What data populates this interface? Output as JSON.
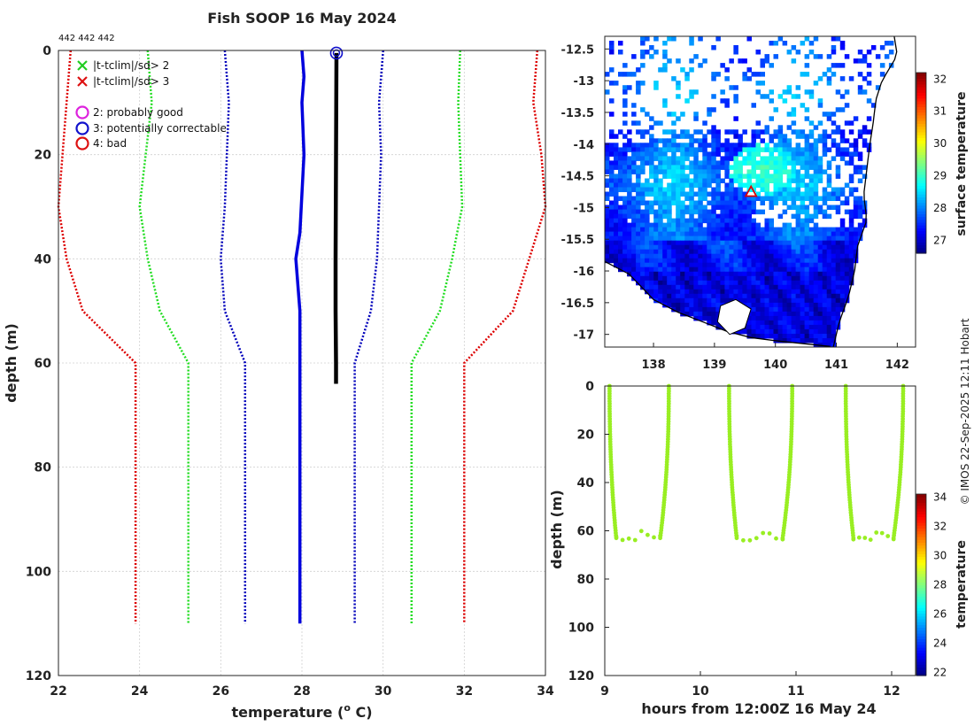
{
  "chart_data": [
    {
      "type": "line",
      "title": "Fish SOOP 16 May 2024",
      "id_label": "442 442 442",
      "xlabel": "temperature (o C)",
      "xlabel_parts": [
        "temperature (",
        "o",
        " C)"
      ],
      "ylabel": "depth (m)",
      "xlim": [
        22,
        34
      ],
      "ylim": [
        0,
        120
      ],
      "xticks": [
        "22",
        "24",
        "26",
        "28",
        "30",
        "32",
        "34"
      ],
      "yticks": [
        "0",
        "20",
        "40",
        "60",
        "80",
        "100",
        "120"
      ],
      "legend": [
        {
          "symbol": "x",
          "color": "#22cc22",
          "label": "|t-tclim|/sd> 2"
        },
        {
          "symbol": "x",
          "color": "#dd1111",
          "label": "|t-tclim|/sd> 3"
        },
        {
          "symbol": "o",
          "color": "#dd22dd",
          "label": "2: probably good"
        },
        {
          "symbol": "o",
          "color": "#1111cc",
          "label": "3: potentially correctable"
        },
        {
          "symbol": "o",
          "color": "#dd1111",
          "label": "4: bad"
        }
      ],
      "series": [
        {
          "name": "clim -3sd",
          "color": "#dd0000",
          "style": "dotted",
          "points": [
            [
              22.3,
              0
            ],
            [
              22.0,
              30
            ],
            [
              22.2,
              40
            ],
            [
              22.6,
              50
            ],
            [
              23.9,
              60
            ],
            [
              23.9,
              110
            ]
          ]
        },
        {
          "name": "clim -2sd",
          "color": "#22dd22",
          "style": "dotted",
          "points": [
            [
              24.2,
              0
            ],
            [
              24.3,
              10
            ],
            [
              24.0,
              30
            ],
            [
              24.2,
              40
            ],
            [
              24.5,
              50
            ],
            [
              25.2,
              60
            ],
            [
              25.2,
              110
            ]
          ]
        },
        {
          "name": "clim -1sd",
          "color": "#0000bb",
          "style": "dotted",
          "points": [
            [
              26.1,
              0
            ],
            [
              26.2,
              10
            ],
            [
              26.1,
              30
            ],
            [
              26.0,
              40
            ],
            [
              26.1,
              50
            ],
            [
              26.6,
              60
            ],
            [
              26.6,
              110
            ]
          ]
        },
        {
          "name": "clim mean",
          "color": "#0000dd",
          "style": "solid",
          "points": [
            [
              28.0,
              0
            ],
            [
              28.05,
              5
            ],
            [
              28.0,
              10
            ],
            [
              28.05,
              20
            ],
            [
              27.95,
              35
            ],
            [
              27.85,
              40
            ],
            [
              27.95,
              50
            ],
            [
              27.95,
              60
            ],
            [
              27.95,
              110
            ]
          ]
        },
        {
          "name": "clim +1sd",
          "color": "#0000bb",
          "style": "dotted",
          "points": [
            [
              30.0,
              0
            ],
            [
              29.9,
              10
            ],
            [
              29.95,
              20
            ],
            [
              29.9,
              30
            ],
            [
              29.85,
              40
            ],
            [
              29.7,
              50
            ],
            [
              29.3,
              60
            ],
            [
              29.3,
              110
            ]
          ]
        },
        {
          "name": "clim +2sd",
          "color": "#22dd22",
          "style": "dotted",
          "points": [
            [
              31.9,
              0
            ],
            [
              31.85,
              10
            ],
            [
              31.9,
              20
            ],
            [
              31.95,
              30
            ],
            [
              31.7,
              40
            ],
            [
              31.4,
              50
            ],
            [
              30.7,
              60
            ],
            [
              30.7,
              110
            ]
          ]
        },
        {
          "name": "clim +3sd",
          "color": "#dd0000",
          "style": "dotted",
          "points": [
            [
              33.8,
              0
            ],
            [
              33.7,
              10
            ],
            [
              33.9,
              20
            ],
            [
              34.0,
              30
            ],
            [
              33.6,
              40
            ],
            [
              33.2,
              50
            ],
            [
              32.0,
              60
            ],
            [
              32.0,
              110
            ]
          ]
        },
        {
          "name": "profile",
          "color": "#000000",
          "style": "solid",
          "points": [
            [
              28.85,
              0.5
            ],
            [
              28.84,
              20
            ],
            [
              28.83,
              40
            ],
            [
              28.83,
              50
            ],
            [
              28.84,
              60
            ],
            [
              28.84,
              64
            ]
          ]
        }
      ],
      "flags": [
        {
          "x": 28.85,
          "y": 0.5,
          "symbol": "o",
          "color": "#1111cc"
        }
      ]
    },
    {
      "type": "heatmap",
      "xlim": [
        137.2,
        142.3
      ],
      "ylim": [
        -17.2,
        -12.3
      ],
      "xticks": [
        "138",
        "139",
        "140",
        "141",
        "142"
      ],
      "yticks": [
        "-12.5",
        "-13",
        "-13.5",
        "-14",
        "-14.5",
        "-15",
        "-15.5",
        "-16",
        "-16.5",
        "-17"
      ],
      "colorbar": {
        "label": "surface temperature",
        "range": [
          26.6,
          32.2
        ],
        "ticks": [
          "27",
          "28",
          "29",
          "30",
          "31",
          "32"
        ]
      },
      "marker": {
        "lon": 139.6,
        "lat": -14.75,
        "symbol": "triangle",
        "color": "#dd0000"
      }
    },
    {
      "type": "scatter",
      "xlabel": "hours from 12:00Z 16 May 24",
      "ylabel": "depth (m)",
      "xlim": [
        9,
        12.25
      ],
      "ylim": [
        0,
        120
      ],
      "xticks": [
        "9",
        "10",
        "11",
        "12"
      ],
      "yticks": [
        "0",
        "20",
        "40",
        "60",
        "80",
        "100",
        "120"
      ],
      "color": "#99ee22",
      "colorbar": {
        "label": "temperature",
        "range": [
          21.8,
          34.2
        ],
        "ticks": [
          "22",
          "24",
          "26",
          "28",
          "30",
          "32",
          "34"
        ]
      },
      "casts": [
        {
          "start": 9.05,
          "bottom": 9.12,
          "end_bottom": 9.58,
          "end": 9.67,
          "depth": 63
        },
        {
          "start": 10.3,
          "bottom": 10.38,
          "end_bottom": 10.86,
          "end": 10.96,
          "depth": 63
        },
        {
          "start": 11.52,
          "bottom": 11.6,
          "end_bottom": 12.02,
          "end": 12.12,
          "depth": 63
        }
      ]
    }
  ],
  "credit": "© IMOS 22-Sep-2025 12:11 Hobart"
}
